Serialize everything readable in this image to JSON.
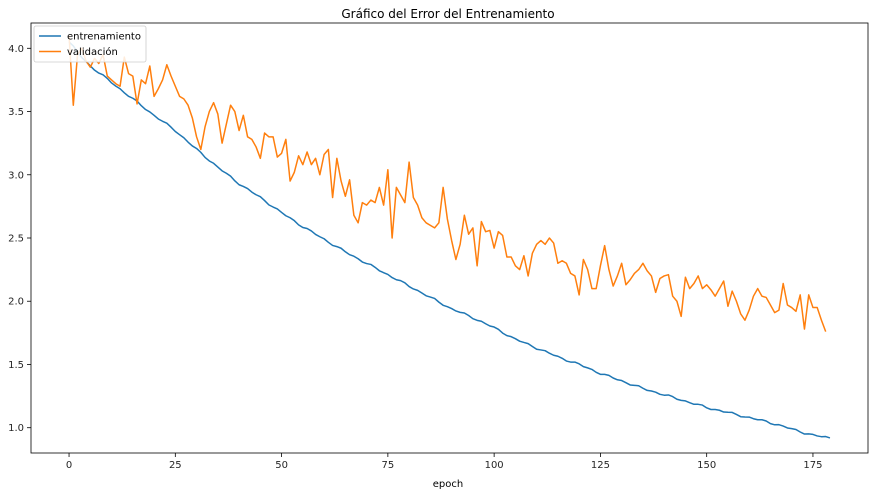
{
  "chart_data": {
    "type": "line",
    "title": "Gráfico del Error del Entrenamiento",
    "xlabel": "epoch",
    "ylabel": "",
    "xlim": [
      -8.95,
      187.95
    ],
    "ylim": [
      0.8,
      4.2
    ],
    "xticks": [
      0,
      25,
      50,
      75,
      100,
      125,
      150,
      175
    ],
    "xtick_labels": [
      "0",
      "25",
      "50",
      "75",
      "100",
      "125",
      "150",
      "175"
    ],
    "yticks": [
      1.0,
      1.5,
      2.0,
      2.5,
      3.0,
      3.5,
      4.0
    ],
    "ytick_labels": [
      "1.0",
      "1.5",
      "2.0",
      "2.5",
      "3.0",
      "3.5",
      "4.0"
    ],
    "grid": false,
    "legend_position": "upper-left",
    "series": [
      {
        "name": "entrenamiento",
        "color": "#1f77b4",
        "keypoints": [
          [
            0,
            4.05
          ],
          [
            3,
            3.93
          ],
          [
            5,
            3.86
          ],
          [
            10,
            3.73
          ],
          [
            15,
            3.6
          ],
          [
            20,
            3.47
          ],
          [
            25,
            3.35
          ],
          [
            30,
            3.2
          ],
          [
            35,
            3.06
          ],
          [
            40,
            2.93
          ],
          [
            45,
            2.82
          ],
          [
            50,
            2.7
          ],
          [
            55,
            2.59
          ],
          [
            60,
            2.49
          ],
          [
            65,
            2.39
          ],
          [
            70,
            2.3
          ],
          [
            75,
            2.21
          ],
          [
            80,
            2.12
          ],
          [
            85,
            2.03
          ],
          [
            90,
            1.94
          ],
          [
            95,
            1.87
          ],
          [
            100,
            1.79
          ],
          [
            105,
            1.7
          ],
          [
            110,
            1.63
          ],
          [
            115,
            1.56
          ],
          [
            120,
            1.5
          ],
          [
            125,
            1.43
          ],
          [
            130,
            1.37
          ],
          [
            135,
            1.31
          ],
          [
            140,
            1.26
          ],
          [
            145,
            1.21
          ],
          [
            150,
            1.16
          ],
          [
            155,
            1.12
          ],
          [
            160,
            1.08
          ],
          [
            165,
            1.04
          ],
          [
            170,
            0.99
          ],
          [
            175,
            0.94
          ],
          [
            179,
            0.92
          ]
        ],
        "values": []
      },
      {
        "name": "validación",
        "color": "#ff7f0e",
        "values": [
          4.1,
          3.55,
          3.95,
          4.0,
          3.9,
          3.85,
          3.92,
          3.88,
          3.95,
          3.78,
          3.75,
          3.72,
          3.7,
          3.93,
          3.8,
          3.78,
          3.56,
          3.75,
          3.72,
          3.86,
          3.62,
          3.68,
          3.75,
          3.87,
          3.78,
          3.7,
          3.62,
          3.6,
          3.55,
          3.45,
          3.3,
          3.2,
          3.38,
          3.5,
          3.57,
          3.48,
          3.25,
          3.4,
          3.55,
          3.5,
          3.35,
          3.47,
          3.3,
          3.28,
          3.22,
          3.13,
          3.33,
          3.3,
          3.3,
          3.14,
          3.17,
          3.28,
          2.95,
          3.02,
          3.15,
          3.08,
          3.18,
          3.08,
          3.13,
          3.0,
          3.16,
          3.2,
          2.82,
          3.13,
          2.95,
          2.83,
          2.96,
          2.68,
          2.62,
          2.78,
          2.76,
          2.8,
          2.78,
          2.9,
          2.76,
          3.04,
          2.5,
          2.9,
          2.84,
          2.78,
          3.1,
          2.82,
          2.76,
          2.66,
          2.62,
          2.6,
          2.58,
          2.62,
          2.9,
          2.65,
          2.48,
          2.33,
          2.45,
          2.68,
          2.53,
          2.58,
          2.28,
          2.63,
          2.55,
          2.56,
          2.42,
          2.55,
          2.52,
          2.35,
          2.35,
          2.28,
          2.25,
          2.36,
          2.2,
          2.38,
          2.45,
          2.48,
          2.45,
          2.5,
          2.46,
          2.3,
          2.32,
          2.3,
          2.22,
          2.2,
          2.05,
          2.33,
          2.25,
          2.1,
          2.1,
          2.28,
          2.44,
          2.25,
          2.12,
          2.2,
          2.3,
          2.13,
          2.17,
          2.22,
          2.25,
          2.3,
          2.24,
          2.2,
          2.07,
          2.18,
          2.2,
          2.21,
          2.04,
          2.0,
          1.88,
          2.19,
          2.1,
          2.14,
          2.2,
          2.1,
          2.13,
          2.09,
          2.04,
          2.1,
          2.16,
          1.96,
          2.08,
          2.0,
          1.9,
          1.85,
          1.93,
          2.04,
          2.1,
          2.04,
          2.03,
          1.97,
          1.91,
          1.93,
          2.14,
          1.97,
          1.95,
          1.92,
          2.05,
          1.78,
          2.05,
          1.95,
          1.95,
          1.85,
          1.76
        ]
      }
    ]
  }
}
